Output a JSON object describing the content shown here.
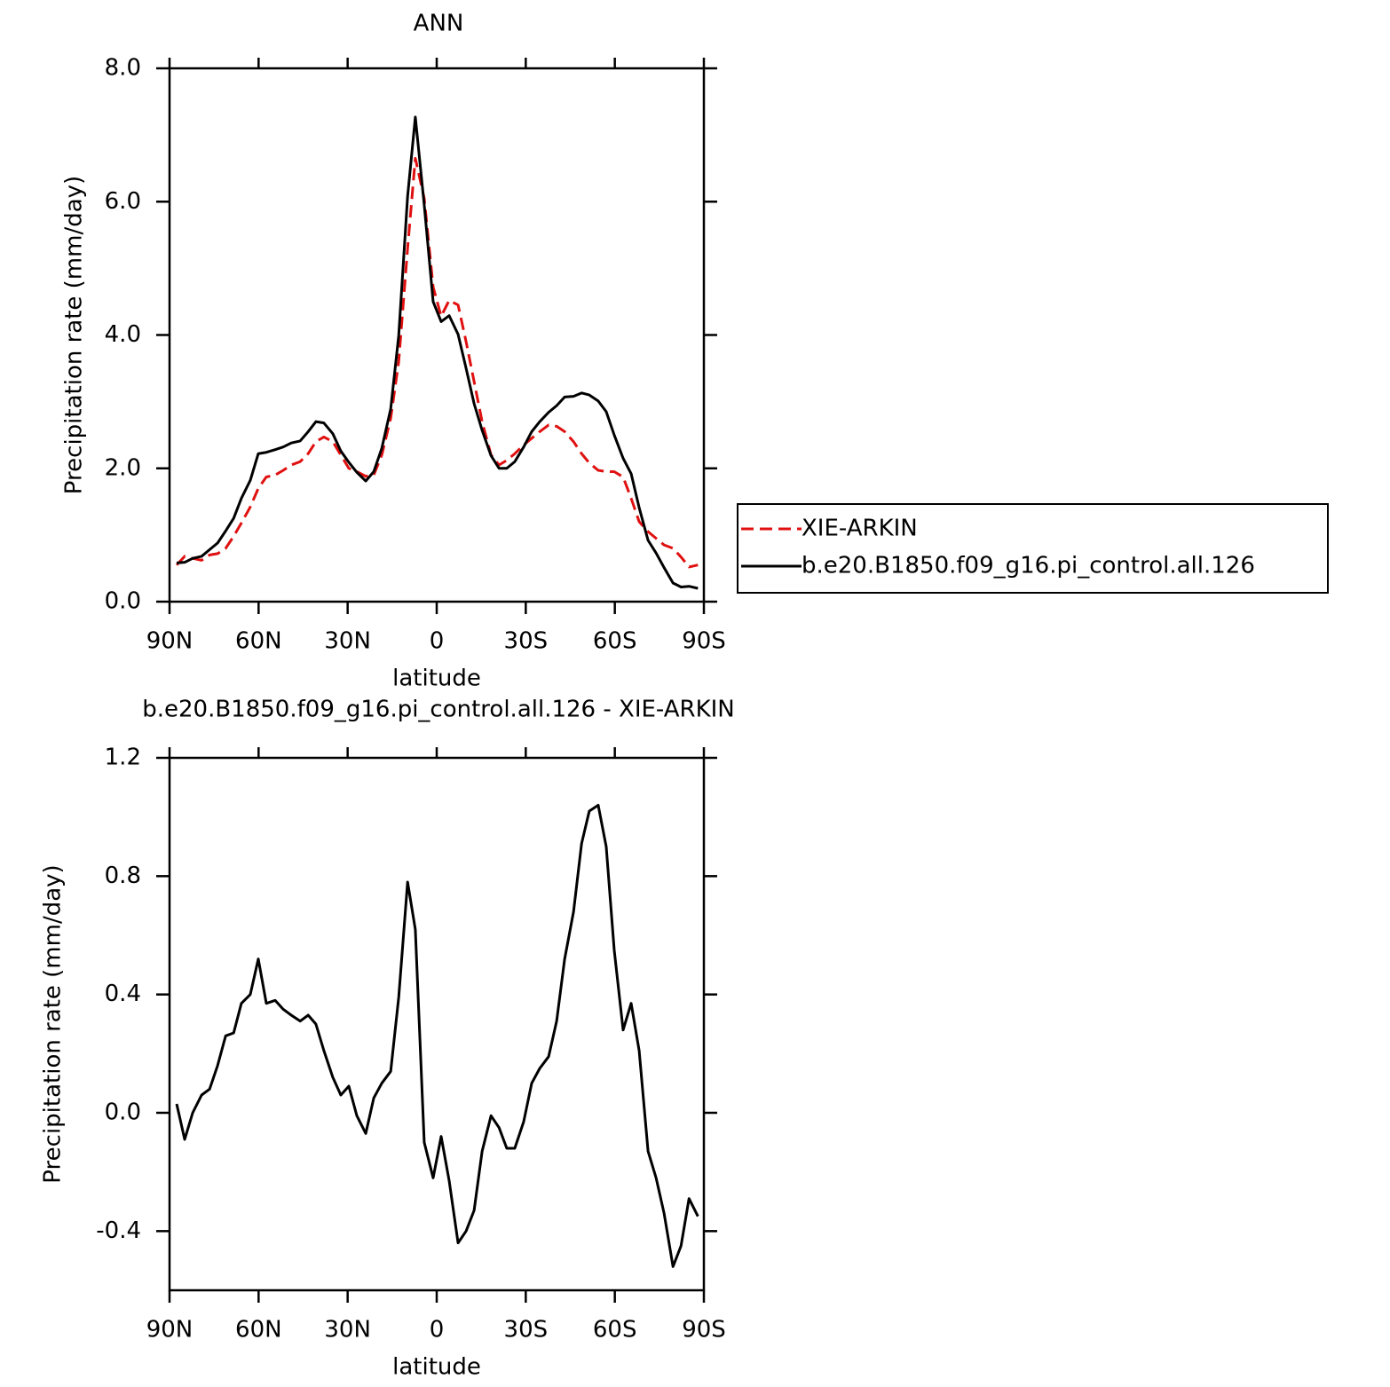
{
  "chart_data": [
    {
      "type": "line",
      "title": "ANN",
      "xlabel": "latitude",
      "ylabel": "Precipitation rate (mm/day)",
      "x": [
        87.6,
        84.9,
        82.2,
        79.2,
        76.5,
        73.8,
        71.1,
        68.4,
        65.8,
        62.8,
        60.1,
        57.4,
        54.4,
        51.7,
        49.0,
        46.0,
        43.3,
        40.7,
        38.0,
        35.0,
        32.3,
        29.6,
        26.9,
        23.9,
        21.2,
        18.5,
        15.5,
        12.8,
        9.8,
        7.2,
        4.2,
        1.2,
        -1.5,
        -4.2,
        -7.2,
        -9.9,
        -12.6,
        -15.3,
        -18.3,
        -21.0,
        -23.6,
        -26.3,
        -29.3,
        -32.0,
        -34.7,
        -37.7,
        -40.4,
        -43.1,
        -46.1,
        -48.8,
        -51.4,
        -54.4,
        -57.1,
        -59.8,
        -62.8,
        -65.5,
        -68.2,
        -71.2,
        -73.9,
        -76.6,
        -79.6,
        -82.3,
        -85.0,
        -88.0
      ],
      "series": [
        {
          "name": "XIE-ARKIN",
          "color": "#e01010",
          "dash": true,
          "values": [
            0.55,
            0.68,
            0.65,
            0.62,
            0.7,
            0.72,
            0.8,
            0.98,
            1.18,
            1.42,
            1.7,
            1.87,
            1.9,
            1.97,
            2.05,
            2.1,
            2.22,
            2.4,
            2.47,
            2.4,
            2.2,
            2.0,
            1.95,
            1.88,
            1.9,
            2.2,
            2.75,
            3.6,
            5.3,
            6.65,
            6.05,
            4.72,
            4.28,
            4.52,
            4.45,
            3.9,
            3.3,
            2.7,
            2.2,
            2.05,
            2.12,
            2.22,
            2.35,
            2.45,
            2.55,
            2.65,
            2.63,
            2.55,
            2.4,
            2.22,
            2.08,
            1.97,
            1.95,
            1.95,
            1.87,
            1.55,
            1.2,
            1.05,
            0.95,
            0.85,
            0.8,
            0.67,
            0.52,
            0.55
          ]
        },
        {
          "name": "b.e20.B1850.f09_g16.pi_control.all.126",
          "color": "#000000",
          "dash": false,
          "values": [
            0.58,
            0.59,
            0.65,
            0.68,
            0.78,
            0.88,
            1.06,
            1.25,
            1.55,
            1.82,
            2.22,
            2.24,
            2.28,
            2.32,
            2.38,
            2.41,
            2.55,
            2.7,
            2.68,
            2.52,
            2.26,
            2.09,
            1.94,
            1.81,
            1.95,
            2.3,
            2.89,
            3.99,
            6.08,
            7.27,
            5.95,
            4.5,
            4.2,
            4.29,
            4.01,
            3.5,
            2.97,
            2.57,
            2.19,
            2.0,
            2.0,
            2.1,
            2.32,
            2.55,
            2.7,
            2.84,
            2.94,
            3.07,
            3.08,
            3.13,
            3.1,
            3.01,
            2.85,
            2.5,
            2.15,
            1.92,
            1.41,
            0.92,
            0.73,
            0.51,
            0.28,
            0.22,
            0.23,
            0.2
          ]
        }
      ],
      "xlim": [
        90,
        -90
      ],
      "xticks": [
        {
          "value": 90,
          "label": "90N"
        },
        {
          "value": 60,
          "label": "60N"
        },
        {
          "value": 30,
          "label": "30N"
        },
        0,
        {
          "value": -30,
          "label": "30S"
        },
        {
          "value": -60,
          "label": "60S"
        },
        {
          "value": -90,
          "label": "90S"
        }
      ],
      "ylim": [
        0,
        8
      ],
      "yticks": [
        {
          "value": 0,
          "label": "0.0"
        },
        {
          "value": 2,
          "label": "2.0"
        },
        {
          "value": 4,
          "label": "4.0"
        },
        {
          "value": 6,
          "label": "6.0"
        },
        {
          "value": 8,
          "label": "8.0"
        }
      ],
      "legend": "right"
    },
    {
      "type": "line",
      "title": "b.e20.B1850.f09_g16.pi_control.all.126 - XIE-ARKIN",
      "xlabel": "latitude",
      "ylabel": "Precipitation rate (mm/day)",
      "x": [
        87.6,
        84.9,
        82.2,
        79.2,
        76.5,
        73.8,
        71.1,
        68.4,
        65.8,
        62.8,
        60.1,
        57.4,
        54.4,
        51.7,
        49.0,
        46.0,
        43.3,
        40.7,
        38.0,
        35.0,
        32.3,
        29.6,
        26.9,
        23.9,
        21.2,
        18.5,
        15.5,
        12.8,
        9.8,
        7.2,
        4.2,
        1.2,
        -1.5,
        -4.2,
        -7.2,
        -9.9,
        -12.6,
        -15.3,
        -18.3,
        -21.0,
        -23.6,
        -26.3,
        -29.3,
        -32.0,
        -34.7,
        -37.7,
        -40.4,
        -43.1,
        -46.1,
        -48.8,
        -51.4,
        -54.4,
        -57.1,
        -59.8,
        -62.8,
        -65.5,
        -68.2,
        -71.2,
        -73.9,
        -76.6,
        -79.6,
        -82.3,
        -85.0,
        -88.0
      ],
      "values": [
        0.03,
        -0.09,
        0.0,
        0.06,
        0.08,
        0.16,
        0.26,
        0.27,
        0.37,
        0.4,
        0.52,
        0.37,
        0.38,
        0.35,
        0.33,
        0.31,
        0.33,
        0.3,
        0.21,
        0.12,
        0.06,
        0.09,
        -0.01,
        -0.07,
        0.05,
        0.1,
        0.14,
        0.39,
        0.78,
        0.62,
        -0.1,
        -0.22,
        -0.08,
        -0.23,
        -0.44,
        -0.4,
        -0.33,
        -0.13,
        -0.01,
        -0.05,
        -0.12,
        -0.12,
        -0.03,
        0.1,
        0.15,
        0.19,
        0.31,
        0.52,
        0.68,
        0.91,
        1.02,
        1.04,
        0.9,
        0.55,
        0.28,
        0.37,
        0.21,
        -0.13,
        -0.22,
        -0.34,
        -0.52,
        -0.45,
        -0.29,
        -0.35
      ],
      "color": "#000000",
      "xlim": [
        90,
        -90
      ],
      "xticks": [
        {
          "value": 90,
          "label": "90N"
        },
        {
          "value": 60,
          "label": "60N"
        },
        {
          "value": 30,
          "label": "30N"
        },
        0,
        {
          "value": -30,
          "label": "30S"
        },
        {
          "value": -60,
          "label": "60S"
        },
        {
          "value": -90,
          "label": "90S"
        }
      ],
      "ylim": [
        -0.6,
        1.2
      ],
      "yticks": [
        {
          "value": -0.4,
          "label": "-0.4"
        },
        {
          "value": 0,
          "label": "0.0"
        },
        {
          "value": 0.4,
          "label": "0.4"
        },
        {
          "value": 0.8,
          "label": "0.8"
        },
        {
          "value": 1.2,
          "label": "1.2"
        }
      ]
    }
  ]
}
